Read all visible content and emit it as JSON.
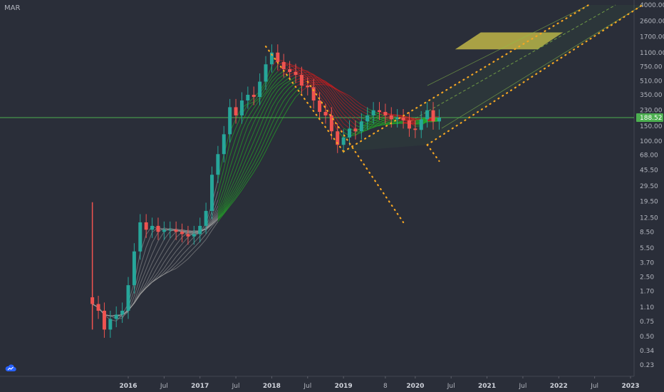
{
  "header": {
    "ticker": "MAR"
  },
  "colors": {
    "background": "#2a2e39",
    "up": "#26a69a",
    "down": "#ef5350",
    "ribbon_up": "#22c822",
    "ribbon_down": "#e01b1b",
    "level": "#4caf50",
    "trend": "#f5a623",
    "target_zone": "#d4c84a"
  },
  "icons": {
    "logo": "tradingview-cloud-icon"
  },
  "chart_data": {
    "type": "line",
    "title": "",
    "scale": "log",
    "price_labels": [
      "4000.00",
      "2600.00",
      "1700.00",
      "1100.00",
      "750.00",
      "510.00",
      "350.00",
      "230.00",
      "150.00",
      "100.00",
      "68.00",
      "45.50",
      "29.50",
      "19.50",
      "12.50",
      "8.50",
      "5.50",
      "3.70",
      "2.50",
      "1.70",
      "1.10",
      "0.75",
      "0.50",
      "0.34",
      "0.23"
    ],
    "time_labels": [
      "2016",
      "Jul",
      "2017",
      "Jul",
      "2018",
      "Jul",
      "2019",
      "8",
      "2020",
      "Jul",
      "2021",
      "Jul",
      "2022",
      "Jul",
      "2023"
    ],
    "ylim": [
      0.18,
      4000
    ],
    "last_price": {
      "value": 188.52,
      "label": "188.52"
    },
    "price_series": {
      "x": [
        "2015-07",
        "2015-08",
        "2015-09",
        "2015-10",
        "2015-11",
        "2015-12",
        "2016-01",
        "2016-02",
        "2016-03",
        "2016-04",
        "2016-05",
        "2016-06",
        "2016-07",
        "2016-08",
        "2016-09",
        "2016-10",
        "2016-11",
        "2016-12",
        "2017-01",
        "2017-02",
        "2017-03",
        "2017-04",
        "2017-05",
        "2017-06",
        "2017-07",
        "2017-08",
        "2017-09",
        "2017-10",
        "2017-11",
        "2017-12",
        "2018-01",
        "2018-02",
        "2018-03",
        "2018-04",
        "2018-05",
        "2018-06",
        "2018-07",
        "2018-08",
        "2018-09",
        "2018-10",
        "2018-11",
        "2018-12",
        "2019-01",
        "2019-02",
        "2019-03",
        "2019-04",
        "2019-05",
        "2019-06",
        "2019-07",
        "2019-08",
        "2019-09",
        "2019-10",
        "2019-11",
        "2019-12",
        "2020-01",
        "2020-02",
        "2020-03",
        "2020-04",
        "2020-05"
      ],
      "y": [
        1.2,
        1.0,
        0.6,
        0.8,
        0.9,
        1.0,
        2.0,
        5.0,
        11,
        9,
        10,
        8.5,
        9,
        9,
        8.5,
        8,
        7.5,
        8,
        10,
        15,
        40,
        70,
        120,
        250,
        200,
        300,
        350,
        330,
        500,
        800,
        1100,
        850,
        700,
        650,
        600,
        450,
        430,
        300,
        220,
        200,
        130,
        90,
        110,
        140,
        130,
        170,
        200,
        230,
        220,
        200,
        180,
        190,
        175,
        140,
        135,
        180,
        230,
        170,
        188.52
      ]
    },
    "annotations": {
      "horizontal_level": 188.52,
      "falling_channel": [
        {
          "from": [
            "2017-12",
            1300
          ],
          "to": [
            "2019-01",
            75
          ]
        },
        {
          "from": [
            "2018-07",
            500
          ],
          "to": [
            "2019-11",
            11
          ]
        }
      ],
      "rising_channel": [
        {
          "from": [
            "2019-01",
            75
          ],
          "to": [
            "2022-06",
            4000
          ]
        },
        {
          "from": [
            "2020-03",
            90
          ],
          "to": [
            "2023-03",
            4000
          ]
        },
        {
          "from": [
            "2020-03",
            90
          ],
          "to": [
            "2020-05",
            58
          ]
        }
      ],
      "target_zone": {
        "from": "2020-11",
        "to": "2022-01",
        "low": 1200,
        "high": 1900
      }
    }
  }
}
